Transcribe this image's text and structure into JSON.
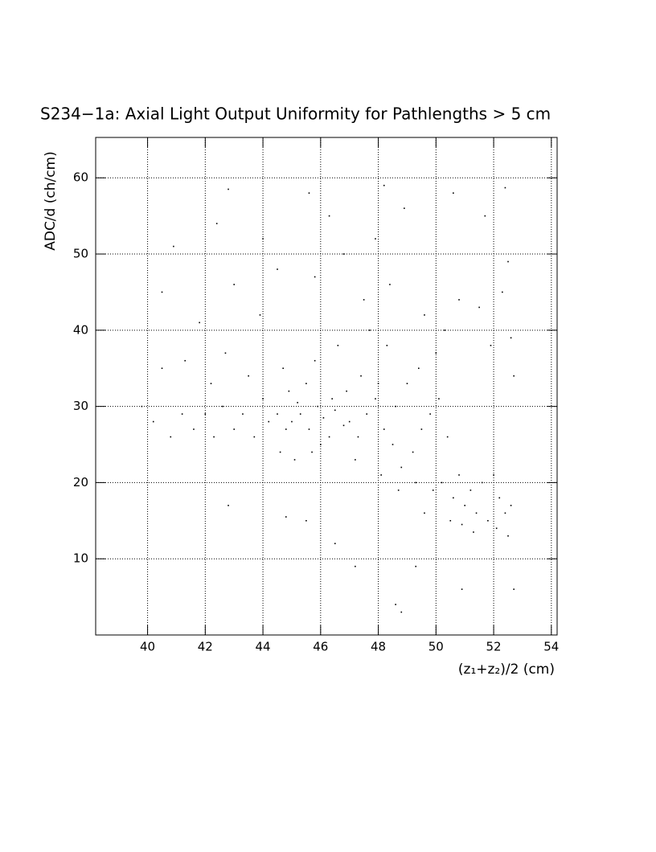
{
  "chart_data": {
    "type": "scatter",
    "title": "S234−1a: Axial Light Output Uniformity for Pathlengths > 5 cm",
    "x_label": "(z₁+z₂)/2 (cm)",
    "y_label": "ADC/d (ch/cm)",
    "color": "#000000",
    "grid": true,
    "xlim": [
      38.2,
      54.2
    ],
    "ylim": [
      0,
      65.3
    ],
    "xticks": [
      40,
      42,
      44,
      46,
      48,
      50,
      52,
      54
    ],
    "yticks": [
      10,
      20,
      30,
      40,
      50,
      60
    ],
    "x": [
      45.0,
      45.3,
      45.6,
      45.9,
      46.1,
      46.3,
      46.5,
      46.8,
      47.0,
      45.2,
      44.8,
      44.5,
      44.2,
      46.0,
      46.4,
      45.7,
      47.3,
      47.6,
      47.9,
      48.2,
      48.5,
      48.0,
      47.4,
      46.9,
      45.5,
      44.9,
      44.0,
      43.7,
      43.3,
      43.0,
      42.6,
      42.3,
      42.0,
      41.6,
      41.2,
      40.8,
      40.2,
      39.8,
      44.6,
      45.1,
      47.2,
      48.8,
      49.2,
      49.5,
      49.8,
      50.1,
      50.4,
      48.6,
      49.0,
      49.4,
      50.0,
      48.3,
      47.7,
      46.6,
      45.8,
      44.7,
      43.5,
      42.7,
      42.2,
      41.3,
      40.5,
      50.2,
      50.6,
      51.0,
      51.4,
      51.8,
      52.1,
      52.4,
      51.2,
      50.8,
      51.6,
      52.2,
      52.5,
      50.5,
      49.9,
      49.3,
      48.7,
      48.1,
      52.0,
      51.3,
      50.9,
      52.6,
      49.6,
      43.0,
      44.5,
      45.8,
      46.8,
      47.5,
      48.4,
      49.6,
      50.8,
      51.5,
      52.3,
      52.6,
      51.9,
      50.3,
      47.9,
      46.3,
      45.6,
      44.0,
      42.4,
      40.9,
      42.8,
      48.9,
      50.6,
      51.7,
      52.4,
      48.2,
      41.8,
      40.5,
      43.9,
      52.5,
      52.7,
      48.6,
      49.3,
      50.9,
      52.7,
      47.2,
      46.5,
      45.5,
      44.8,
      42.8,
      48.8
    ],
    "y": [
      28,
      29,
      27,
      30,
      28.5,
      26,
      29.5,
      27.5,
      28,
      30.5,
      27,
      29,
      28,
      25,
      31,
      24,
      26,
      29,
      31,
      27,
      25,
      33,
      34,
      32,
      33,
      32,
      31,
      26,
      29,
      27,
      30,
      26,
      29,
      27,
      29,
      26,
      28,
      30,
      24,
      23,
      23,
      22,
      24,
      27,
      29,
      31,
      26,
      30,
      33,
      35,
      37,
      38,
      40,
      38,
      36,
      35,
      34,
      37,
      33,
      36,
      35,
      20,
      18,
      17,
      16,
      15,
      14,
      16,
      19,
      21,
      20,
      18,
      13,
      15,
      19,
      20,
      19,
      21,
      21,
      13.5,
      14.5,
      17,
      16,
      46,
      48,
      47,
      50,
      44,
      46,
      42,
      44,
      43,
      45,
      39,
      38,
      40,
      52,
      55,
      58,
      52,
      54,
      51,
      58.5,
      56,
      58,
      55,
      58.7,
      59,
      41,
      45,
      42,
      49,
      34,
      4,
      9,
      6,
      6,
      9,
      12,
      15,
      15.5,
      17,
      3
    ]
  }
}
